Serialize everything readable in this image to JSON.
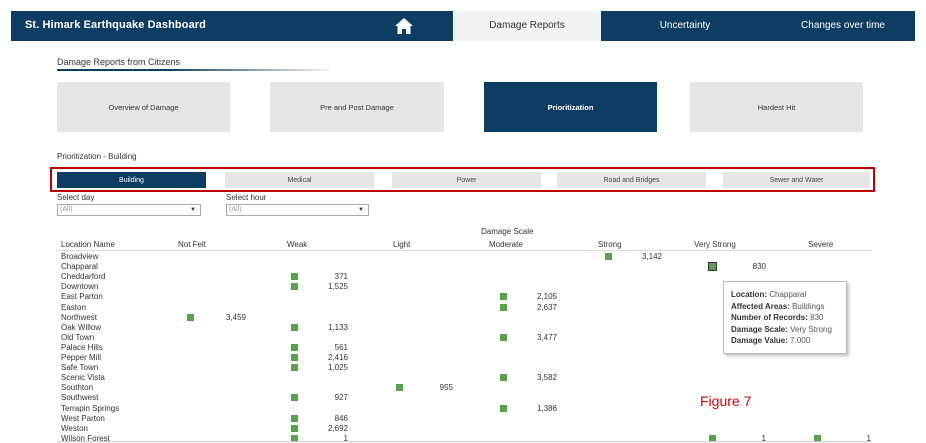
{
  "header": {
    "title": "St. Himark Earthquake Dashboard",
    "tabs": [
      {
        "label": "Damage Reports",
        "active": true
      },
      {
        "label": "Uncertainty",
        "active": false
      },
      {
        "label": "Changes over time",
        "active": false
      }
    ]
  },
  "section": {
    "title": "Damage Reports from Citizens"
  },
  "main_buttons": [
    {
      "label": "Overview of Damage",
      "active": false
    },
    {
      "label": "Pre and Post Damage",
      "active": false
    },
    {
      "label": "Prioritization",
      "active": true
    },
    {
      "label": "Hardest Hit",
      "active": false
    }
  ],
  "subsection": {
    "title": "Prioritization - Building"
  },
  "sub_buttons": [
    {
      "label": "Building",
      "active": true
    },
    {
      "label": "Medical",
      "active": false
    },
    {
      "label": "Power",
      "active": false
    },
    {
      "label": "Road and Bridges",
      "active": false
    },
    {
      "label": "Sewer and Water",
      "active": false
    }
  ],
  "filters": {
    "day": {
      "label": "Select day",
      "value": "(All)"
    },
    "hour": {
      "label": "Select hour",
      "value": "(All)"
    }
  },
  "table": {
    "location_header": "Location Name",
    "scale_header": "Damage Scale",
    "columns": [
      "Not Felt",
      "Weak",
      "Light",
      "Moderate",
      "Strong",
      "Very Strong",
      "Severe"
    ],
    "locations": [
      "Broadview",
      "Chapparal",
      "Cheddarford",
      "Downtown",
      "East Parton",
      "Easton",
      "Northwest",
      "Oak Willow",
      "Old Town",
      "Palace Hills",
      "Pepper Mill",
      "Safe Town",
      "Scenic Vista",
      "Southton",
      "Southwest",
      "Terrapin Springs",
      "West Parton",
      "Weston",
      "Wilson Forest"
    ],
    "cells": [
      {
        "location": "Broadview",
        "scale": "Strong",
        "value": "3,142"
      },
      {
        "location": "Chapparal",
        "scale": "Very Strong",
        "value": "830",
        "selected": true
      },
      {
        "location": "Cheddarford",
        "scale": "Weak",
        "value": "371"
      },
      {
        "location": "Downtown",
        "scale": "Weak",
        "value": "1,525"
      },
      {
        "location": "East Parton",
        "scale": "Moderate",
        "value": "2,105"
      },
      {
        "location": "Easton",
        "scale": "Moderate",
        "value": "2,637"
      },
      {
        "location": "Northwest",
        "scale": "Not Felt",
        "value": "3,459"
      },
      {
        "location": "Oak Willow",
        "scale": "Weak",
        "value": "1,133"
      },
      {
        "location": "Old Town",
        "scale": "Moderate",
        "value": "3,477"
      },
      {
        "location": "Palace Hills",
        "scale": "Weak",
        "value": "561"
      },
      {
        "location": "Pepper Mill",
        "scale": "Weak",
        "value": "2,416"
      },
      {
        "location": "Safe Town",
        "scale": "Weak",
        "value": "1,025"
      },
      {
        "location": "Scenic Vista",
        "scale": "Moderate",
        "value": "3,582"
      },
      {
        "location": "Southton",
        "scale": "Light",
        "value": "955"
      },
      {
        "location": "Southwest",
        "scale": "Weak",
        "value": "927"
      },
      {
        "location": "Terrapin Springs",
        "scale": "Moderate",
        "value": "1,386"
      },
      {
        "location": "West Parton",
        "scale": "Weak",
        "value": "846"
      },
      {
        "location": "Weston",
        "scale": "Weak",
        "value": "2,692"
      },
      {
        "location": "Wilson Forest",
        "scale": "Weak",
        "value": "1"
      },
      {
        "location": "Wilson Forest",
        "scale": "Very Strong",
        "value": "1"
      },
      {
        "location": "Wilson Forest",
        "scale": "Severe",
        "value": "1"
      }
    ],
    "mark_color": "#59a14f"
  },
  "tooltip": {
    "rows": [
      {
        "key": "Location:",
        "value": "Chapparal"
      },
      {
        "key": "Affected Areas:",
        "value": "Buildings"
      },
      {
        "key": "Number of Records:",
        "value": "830"
      },
      {
        "key": "Damage Scale:",
        "value": "Very Strong"
      },
      {
        "key": "Damage Value:",
        "value": "7.000"
      }
    ]
  },
  "figure_label": "Figure 7",
  "colors": {
    "primary": "#0e3d63",
    "inactive": "#e6e6e6",
    "highlight": "#c00000"
  }
}
